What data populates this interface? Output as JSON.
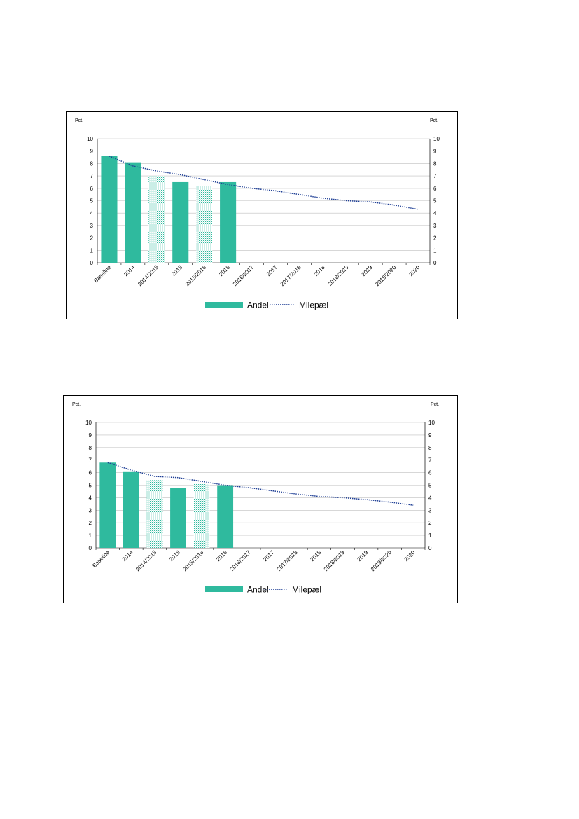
{
  "colors": {
    "bar_solid": "#2fba9e",
    "bar_hatched": "#bfe8df",
    "line": "#1f3f95",
    "grid": "#bfbfbf"
  },
  "chart_data": [
    {
      "type": "bar",
      "left_unit": "Pct.",
      "right_unit": "Pct.",
      "ylim": [
        0,
        10
      ],
      "yticks": [
        "0",
        "1",
        "2",
        "3",
        "4",
        "5",
        "6",
        "7",
        "8",
        "9",
        "10"
      ],
      "grid": true,
      "legend_position": "bottom",
      "categories": [
        "Baseline",
        "2014",
        "2014/2015",
        "2015",
        "2015/2016",
        "2016",
        "2016/2017",
        "2017",
        "2017/2018",
        "2018",
        "2018/2019",
        "2019",
        "2019/2020",
        "2020"
      ],
      "series": [
        {
          "name": "Andel",
          "kind": "bar",
          "values": [
            8.6,
            8.1,
            7.0,
            6.5,
            6.2,
            6.5,
            null,
            null,
            null,
            null,
            null,
            null,
            null,
            null
          ],
          "hatched": [
            false,
            false,
            true,
            false,
            true,
            false,
            false,
            false,
            false,
            false,
            false,
            false,
            false,
            false
          ]
        },
        {
          "name": "Milepæl",
          "kind": "line",
          "style": "dotted",
          "values": [
            8.6,
            7.8,
            7.4,
            7.1,
            6.7,
            6.3,
            6.0,
            5.8,
            5.5,
            5.2,
            5.0,
            4.9,
            4.65,
            4.3
          ]
        }
      ]
    },
    {
      "type": "bar",
      "left_unit": "Pct.",
      "right_unit": "Pct.",
      "ylim": [
        0,
        10
      ],
      "yticks": [
        "0",
        "1",
        "2",
        "3",
        "4",
        "5",
        "6",
        "7",
        "8",
        "9",
        "10"
      ],
      "grid": true,
      "legend_position": "bottom",
      "categories": [
        "Baseline",
        "2014",
        "2014/2015",
        "2015",
        "2015/2016",
        "2016",
        "2016/2017",
        "2017",
        "2017/2018",
        "2018",
        "2018/2019",
        "2019",
        "2019/2020",
        "2020"
      ],
      "series": [
        {
          "name": "Andel",
          "kind": "bar",
          "values": [
            6.8,
            6.1,
            5.4,
            4.8,
            5.1,
            5.0,
            null,
            null,
            null,
            null,
            null,
            null,
            null,
            null
          ],
          "hatched": [
            false,
            false,
            true,
            false,
            true,
            false,
            false,
            false,
            false,
            false,
            false,
            false,
            false,
            false
          ]
        },
        {
          "name": "Milepæl",
          "kind": "line",
          "style": "dotted",
          "values": [
            6.8,
            6.2,
            5.7,
            5.6,
            5.3,
            5.0,
            4.8,
            4.55,
            4.3,
            4.1,
            4.0,
            3.85,
            3.65,
            3.4
          ]
        }
      ]
    }
  ]
}
